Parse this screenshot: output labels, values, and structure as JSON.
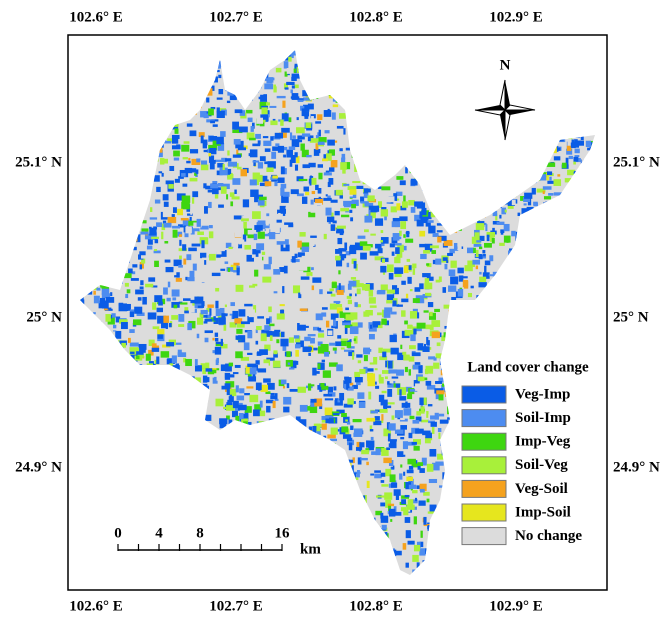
{
  "map": {
    "top_labels": [
      "102.6° E",
      "102.7° E",
      "102.8° E",
      "102.9° E"
    ],
    "bottom_labels": [
      "102.6° E",
      "102.7° E",
      "102.8° E",
      "102.9° E"
    ],
    "left_labels": [
      "25.1° N",
      "25° N",
      "24.9° N"
    ],
    "right_labels": [
      "25.1° N",
      "25° N",
      "24.9° N"
    ],
    "north": "N",
    "legend": {
      "title": "Land cover change",
      "items": [
        {
          "label": "Veg-Imp",
          "color": "#0a5ce6"
        },
        {
          "label": "Soil-Imp",
          "color": "#4d8cf0"
        },
        {
          "label": "Imp-Veg",
          "color": "#3ed610"
        },
        {
          "label": "Soil-Veg",
          "color": "#a8f03a"
        },
        {
          "label": "Veg-Soil",
          "color": "#f5a21e"
        },
        {
          "label": "Imp-Soil",
          "color": "#e6e61e"
        },
        {
          "label": "No change",
          "color": "#dcdcdc"
        }
      ]
    },
    "scale_bar": {
      "labels": [
        "0",
        "4",
        "8",
        "16"
      ],
      "unit": "km"
    }
  }
}
